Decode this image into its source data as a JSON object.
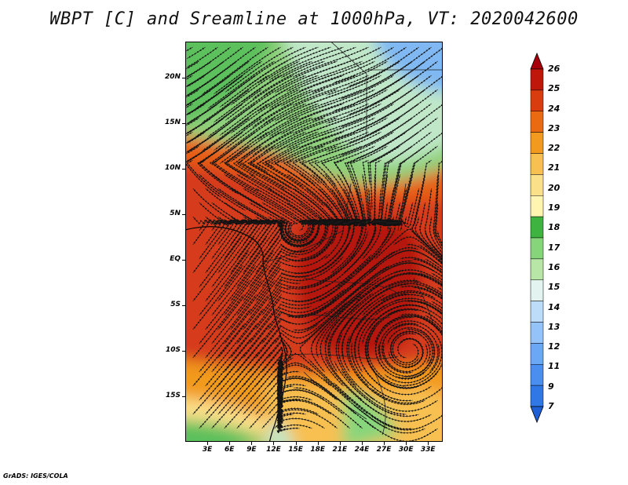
{
  "title": "WBPT [C] and Sreamline at 1000hPa, VT: 2020042600",
  "credit": "GrADS: IGES/COLA",
  "map": {
    "lon_range": [
      0,
      35
    ],
    "lat_range": [
      -20,
      24
    ],
    "lat_labels": [
      {
        "lat": 20,
        "text": "20N"
      },
      {
        "lat": 15,
        "text": "15N"
      },
      {
        "lat": 10,
        "text": "10N"
      },
      {
        "lat": 5,
        "text": "5N"
      },
      {
        "lat": 0,
        "text": "EQ"
      },
      {
        "lat": -5,
        "text": "5S"
      },
      {
        "lat": -10,
        "text": "10S"
      },
      {
        "lat": -15,
        "text": "15S"
      }
    ],
    "lon_labels": [
      {
        "lon": 3,
        "text": "3E"
      },
      {
        "lon": 6,
        "text": "6E"
      },
      {
        "lon": 9,
        "text": "9E"
      },
      {
        "lon": 12,
        "text": "12E"
      },
      {
        "lon": 15,
        "text": "15E"
      },
      {
        "lon": 18,
        "text": "18E"
      },
      {
        "lon": 21,
        "text": "21E"
      },
      {
        "lon": 24,
        "text": "24E"
      },
      {
        "lon": 27,
        "text": "27E"
      },
      {
        "lon": 30,
        "text": "30E"
      },
      {
        "lon": 33,
        "text": "33E"
      }
    ]
  },
  "colorbar": {
    "levels": [
      "7",
      "9",
      "11",
      "12",
      "13",
      "14",
      "15",
      "16",
      "17",
      "18",
      "19",
      "20",
      "21",
      "22",
      "23",
      "24",
      "25",
      "26"
    ],
    "colors": [
      "#1f5fd6",
      "#2f78e6",
      "#4a8ff0",
      "#6aa7f5",
      "#93c3f8",
      "#bcdcfa",
      "#e2f3f0",
      "#b7e6a6",
      "#87d57b",
      "#3fb33f",
      "#fff4b0",
      "#fbe08a",
      "#f7c051",
      "#f29a1f",
      "#ea6a12",
      "#d93c0e",
      "#c0170b",
      "#a8000a"
    ]
  }
}
